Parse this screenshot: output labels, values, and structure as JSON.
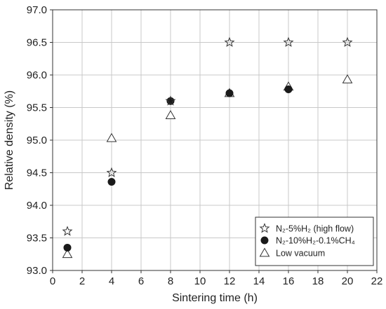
{
  "chart_data": {
    "type": "scatter",
    "title": "",
    "xlabel": "Sintering time (h)",
    "ylabel": "Relative density (%)",
    "xlim": [
      0,
      22
    ],
    "ylim": [
      93.0,
      97.0
    ],
    "xticks": [
      0,
      2,
      4,
      6,
      8,
      10,
      12,
      14,
      16,
      18,
      20,
      22
    ],
    "yticks": [
      93.0,
      93.5,
      94.0,
      94.5,
      95.0,
      95.5,
      96.0,
      96.5,
      97.0
    ],
    "grid": true,
    "legend_position": "bottom-right",
    "series": [
      {
        "name": "N₂-5%H₂ (high flow)",
        "marker": "star",
        "points": [
          [
            1,
            93.6
          ],
          [
            4,
            94.5
          ],
          [
            8,
            95.6
          ],
          [
            12,
            96.5
          ],
          [
            16,
            96.5
          ],
          [
            20,
            96.5
          ]
        ]
      },
      {
        "name": "N₂-10%H₂-0.1%CH₄",
        "marker": "circle",
        "points": [
          [
            1,
            93.35
          ],
          [
            4,
            94.36
          ],
          [
            8,
            95.6
          ],
          [
            12,
            95.72
          ],
          [
            16,
            95.78
          ]
        ]
      },
      {
        "name": "Low vacuum",
        "marker": "triangle",
        "points": [
          [
            1,
            93.25
          ],
          [
            4,
            95.03
          ],
          [
            8,
            95.38
          ],
          [
            12,
            95.72
          ],
          [
            16,
            95.82
          ],
          [
            20,
            95.93
          ]
        ]
      }
    ]
  }
}
